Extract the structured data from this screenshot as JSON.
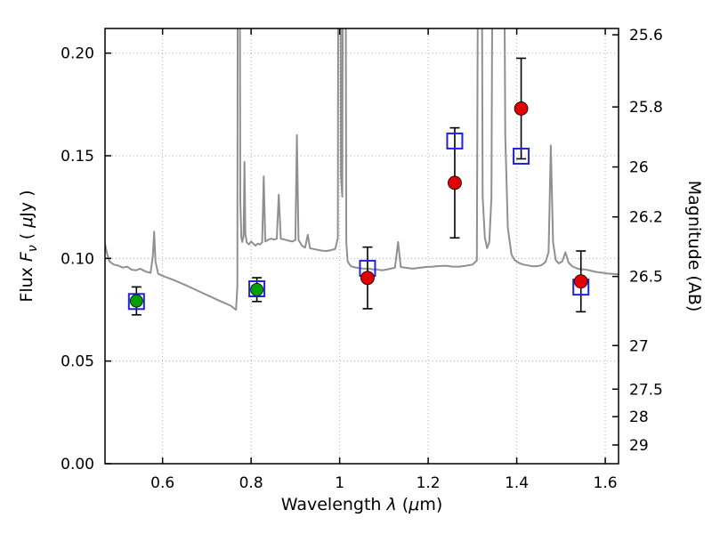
{
  "chart_data": {
    "type": "line",
    "title": "",
    "xlabel": "Wavelength λ (μm)",
    "ylabel_left": "Flux Fν ( μJy )",
    "ylabel_right": "Magnitude (AB)",
    "xlabel_segments": [
      {
        "t": "Wavelength  ",
        "i": false
      },
      {
        "t": "λ",
        "i": true
      },
      {
        "t": " (",
        "i": false
      },
      {
        "t": "μ",
        "i": true
      },
      {
        "t": "m)",
        "i": false
      }
    ],
    "ylabel_left_segments": [
      {
        "t": "Flux  ",
        "i": false
      },
      {
        "t": "F",
        "i": true
      },
      {
        "t": "ν",
        "i": true,
        "sub": true
      },
      {
        "t": "  ( ",
        "i": false
      },
      {
        "t": "μ",
        "i": true
      },
      {
        "t": "Jy )",
        "i": false
      }
    ],
    "ylabel_right_segments": [
      {
        "t": "Magnitude (AB)",
        "i": false
      }
    ],
    "xlim": [
      0.47,
      1.63
    ],
    "ylim": [
      0,
      0.212
    ],
    "x_ticks": [
      0.6,
      0.8,
      1.0,
      1.2,
      1.4,
      1.6
    ],
    "x_tick_labels": [
      "0.6",
      "0.8",
      "1",
      "1.2",
      "1.4",
      "1.6"
    ],
    "y_ticks_left": [
      0,
      0.05,
      0.1,
      0.15,
      0.2
    ],
    "y_tick_labels_left": [
      "0.00",
      "0.05",
      "0.10",
      "0.15",
      "0.20"
    ],
    "y_ticks_right": [
      25.6,
      25.8,
      26,
      26.2,
      26.5,
      27,
      27.5,
      28,
      29
    ],
    "y_tick_labels_right": [
      "25.6",
      "25.8",
      "26",
      "26.2",
      "26.5",
      "27",
      "27.5",
      "28",
      "29"
    ],
    "mag_zeropoint_ab": 23.9,
    "grid": true,
    "style": {
      "background": "#ffffff",
      "axes_color": "#000000",
      "grid_color": "#b0b0b0",
      "spectrum_color": "#909090",
      "red": "#e00000",
      "green": "#00a000",
      "blue": "#2222dd"
    },
    "series": {
      "gray_spectrum": {
        "kind": "line",
        "points": [
          [
            0.47,
            0.107
          ],
          [
            0.475,
            0.102
          ],
          [
            0.48,
            0.0985
          ],
          [
            0.49,
            0.097
          ],
          [
            0.5,
            0.0965
          ],
          [
            0.51,
            0.0955
          ],
          [
            0.52,
            0.096
          ],
          [
            0.53,
            0.0945
          ],
          [
            0.54,
            0.0942
          ],
          [
            0.55,
            0.095
          ],
          [
            0.558,
            0.094
          ],
          [
            0.566,
            0.0933
          ],
          [
            0.573,
            0.093
          ],
          [
            0.578,
            0.101
          ],
          [
            0.581,
            0.113
          ],
          [
            0.584,
            0.0985
          ],
          [
            0.59,
            0.0925
          ],
          [
            0.6,
            0.0915
          ],
          [
            0.615,
            0.0903
          ],
          [
            0.63,
            0.089
          ],
          [
            0.65,
            0.0872
          ],
          [
            0.67,
            0.0852
          ],
          [
            0.69,
            0.0832
          ],
          [
            0.71,
            0.0812
          ],
          [
            0.73,
            0.0792
          ],
          [
            0.745,
            0.0778
          ],
          [
            0.755,
            0.0768
          ],
          [
            0.762,
            0.0756
          ],
          [
            0.766,
            0.075
          ],
          [
            0.769,
            0.086
          ],
          [
            0.7705,
            0.4
          ],
          [
            0.773,
            0.4
          ],
          [
            0.7755,
            0.128
          ],
          [
            0.778,
            0.11
          ],
          [
            0.78,
            0.108
          ],
          [
            0.783,
            0.111
          ],
          [
            0.785,
            0.147
          ],
          [
            0.787,
            0.112
          ],
          [
            0.79,
            0.1078
          ],
          [
            0.795,
            0.1068
          ],
          [
            0.8,
            0.1082
          ],
          [
            0.805,
            0.1072
          ],
          [
            0.81,
            0.1062
          ],
          [
            0.815,
            0.1072
          ],
          [
            0.82,
            0.1068
          ],
          [
            0.825,
            0.1078
          ],
          [
            0.8285,
            0.14
          ],
          [
            0.832,
            0.1082
          ],
          [
            0.838,
            0.109
          ],
          [
            0.845,
            0.1096
          ],
          [
            0.852,
            0.1092
          ],
          [
            0.858,
            0.1096
          ],
          [
            0.8625,
            0.131
          ],
          [
            0.867,
            0.1096
          ],
          [
            0.875,
            0.1092
          ],
          [
            0.885,
            0.1086
          ],
          [
            0.893,
            0.1082
          ],
          [
            0.9,
            0.109
          ],
          [
            0.9035,
            0.16
          ],
          [
            0.907,
            0.109
          ],
          [
            0.915,
            0.1062
          ],
          [
            0.922,
            0.1052
          ],
          [
            0.928,
            0.1115
          ],
          [
            0.933,
            0.105
          ],
          [
            0.94,
            0.1046
          ],
          [
            0.95,
            0.1042
          ],
          [
            0.96,
            0.1038
          ],
          [
            0.97,
            0.1036
          ],
          [
            0.98,
            0.104
          ],
          [
            0.99,
            0.1046
          ],
          [
            0.996,
            0.11
          ],
          [
            0.998,
            0.4
          ],
          [
            1.001,
            0.4
          ],
          [
            1.003,
            0.14
          ],
          [
            1.006,
            0.13
          ],
          [
            1.009,
            0.4
          ],
          [
            1.012,
            0.4
          ],
          [
            1.015,
            0.108
          ],
          [
            1.018,
            0.0985
          ],
          [
            1.025,
            0.0962
          ],
          [
            1.035,
            0.0956
          ],
          [
            1.045,
            0.0952
          ],
          [
            1.055,
            0.095
          ],
          [
            1.065,
            0.095
          ],
          [
            1.075,
            0.0947
          ],
          [
            1.085,
            0.0946
          ],
          [
            1.095,
            0.0942
          ],
          [
            1.105,
            0.0945
          ],
          [
            1.115,
            0.095
          ],
          [
            1.125,
            0.0955
          ],
          [
            1.132,
            0.108
          ],
          [
            1.138,
            0.0958
          ],
          [
            1.15,
            0.0954
          ],
          [
            1.165,
            0.095
          ],
          [
            1.18,
            0.0954
          ],
          [
            1.195,
            0.0958
          ],
          [
            1.21,
            0.096
          ],
          [
            1.225,
            0.0963
          ],
          [
            1.24,
            0.0964
          ],
          [
            1.255,
            0.096
          ],
          [
            1.27,
            0.096
          ],
          [
            1.285,
            0.0964
          ],
          [
            1.3,
            0.097
          ],
          [
            1.31,
            0.099
          ],
          [
            1.315,
            0.4
          ],
          [
            1.319,
            0.4
          ],
          [
            1.323,
            0.13
          ],
          [
            1.328,
            0.11
          ],
          [
            1.333,
            0.105
          ],
          [
            1.338,
            0.108
          ],
          [
            1.343,
            0.13
          ],
          [
            1.348,
            0.4
          ],
          [
            1.368,
            0.4
          ],
          [
            1.374,
            0.16
          ],
          [
            1.38,
            0.115
          ],
          [
            1.388,
            0.102
          ],
          [
            1.395,
            0.0992
          ],
          [
            1.405,
            0.0978
          ],
          [
            1.415,
            0.097
          ],
          [
            1.425,
            0.0966
          ],
          [
            1.435,
            0.0962
          ],
          [
            1.445,
            0.0962
          ],
          [
            1.455,
            0.0966
          ],
          [
            1.465,
            0.0982
          ],
          [
            1.472,
            0.103
          ],
          [
            1.477,
            0.155
          ],
          [
            1.482,
            0.108
          ],
          [
            1.488,
            0.0992
          ],
          [
            1.495,
            0.0976
          ],
          [
            1.503,
            0.0986
          ],
          [
            1.51,
            0.103
          ],
          [
            1.517,
            0.098
          ],
          [
            1.525,
            0.0962
          ],
          [
            1.535,
            0.0952
          ],
          [
            1.545,
            0.0946
          ],
          [
            1.555,
            0.0946
          ],
          [
            1.565,
            0.0941
          ],
          [
            1.575,
            0.0936
          ],
          [
            1.585,
            0.0932
          ],
          [
            1.595,
            0.093
          ],
          [
            1.605,
            0.0926
          ],
          [
            1.615,
            0.0925
          ],
          [
            1.63,
            0.0922
          ]
        ]
      },
      "blue_open_squares": {
        "kind": "scatter",
        "marker": "open-square",
        "points": [
          {
            "x": 0.541,
            "y": 0.079
          },
          {
            "x": 0.813,
            "y": 0.0852
          },
          {
            "x": 1.063,
            "y": 0.0952
          },
          {
            "x": 1.26,
            "y": 0.1572
          },
          {
            "x": 1.41,
            "y": 0.1498
          },
          {
            "x": 1.545,
            "y": 0.086
          }
        ]
      },
      "green_filled_circles": {
        "kind": "scatter",
        "marker": "filled-circle",
        "points": [
          {
            "x": 0.541,
            "y": 0.0793,
            "yerr": 0.0068
          },
          {
            "x": 0.813,
            "y": 0.0848,
            "yerr": 0.0058
          }
        ]
      },
      "red_filled_circles": {
        "kind": "scatter",
        "marker": "filled-circle",
        "points": [
          {
            "x": 1.063,
            "y": 0.0905,
            "yerr": 0.015
          },
          {
            "x": 1.26,
            "y": 0.1368,
            "yerr": 0.0268
          },
          {
            "x": 1.41,
            "y": 0.173,
            "yerr": 0.0245
          },
          {
            "x": 1.545,
            "y": 0.0888,
            "yerr": 0.0148
          }
        ]
      }
    }
  }
}
